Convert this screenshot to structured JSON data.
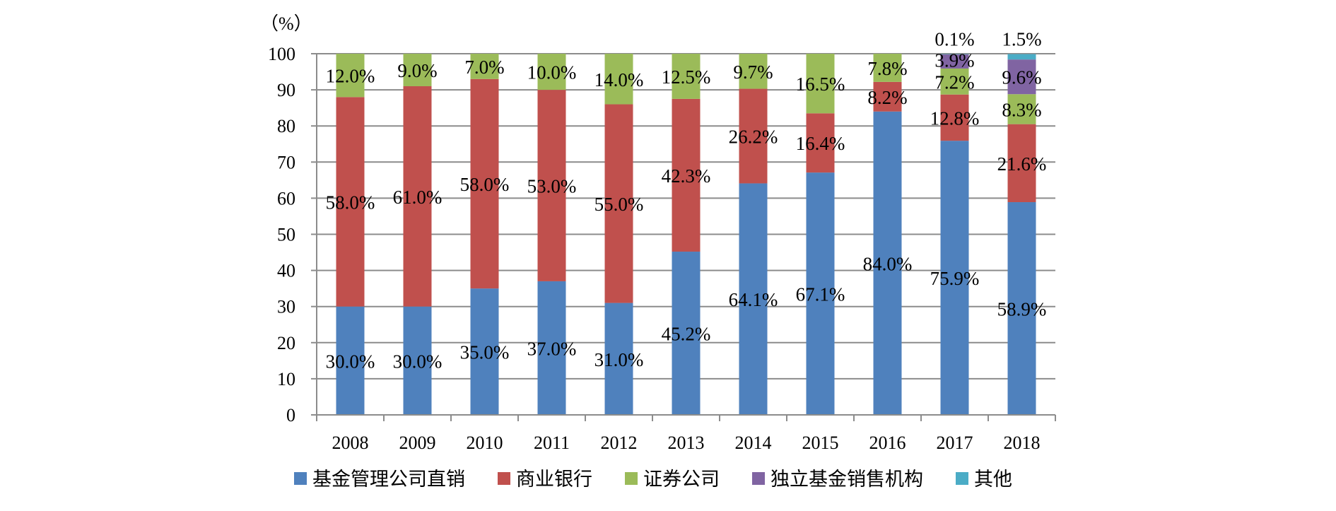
{
  "chart_data": {
    "type": "bar",
    "stacked": true,
    "title": "",
    "xlabel": "",
    "ylabel": "",
    "unit_label": "（%）",
    "ylim": [
      0,
      100
    ],
    "yticks": [
      0,
      10,
      20,
      30,
      40,
      50,
      60,
      70,
      80,
      90,
      100
    ],
    "grid": true,
    "legend_position": "bottom",
    "categories": [
      "2008",
      "2009",
      "2010",
      "2011",
      "2012",
      "2013",
      "2014",
      "2015",
      "2016",
      "2017",
      "2018"
    ],
    "series": [
      {
        "name": "基金管理公司直销",
        "color": "#4f81bd",
        "values": [
          30.0,
          30.0,
          35.0,
          37.0,
          31.0,
          45.2,
          64.1,
          67.1,
          84.0,
          75.9,
          58.9
        ],
        "labels": [
          "30.0%",
          "30.0%",
          "35.0%",
          "37.0%",
          "31.0%",
          "45.2%",
          "64.1%",
          "67.1%",
          "84.0%",
          "75.9%",
          "58.9%"
        ]
      },
      {
        "name": "商业银行",
        "color": "#c0504d",
        "values": [
          58.0,
          61.0,
          58.0,
          53.0,
          55.0,
          42.3,
          26.2,
          16.4,
          8.2,
          12.8,
          21.6
        ],
        "labels": [
          "58.0%",
          "61.0%",
          "58.0%",
          "53.0%",
          "55.0%",
          "42.3%",
          "26.2%",
          "16.4%",
          "8.2%",
          "12.8%",
          "21.6%"
        ]
      },
      {
        "name": "证券公司",
        "color": "#9bbb59",
        "values": [
          12.0,
          9.0,
          7.0,
          10.0,
          14.0,
          12.5,
          9.7,
          16.5,
          7.8,
          7.2,
          8.3
        ],
        "labels": [
          "12.0%",
          "9.0%",
          "7.0%",
          "10.0%",
          "14.0%",
          "12.5%",
          "9.7%",
          "16.5%",
          "7.8%",
          "7.2%",
          "8.3%"
        ]
      },
      {
        "name": "独立基金销售机构",
        "color": "#8064a2",
        "values": [
          0,
          0,
          0,
          0,
          0,
          0,
          0,
          0,
          0,
          3.9,
          9.6
        ],
        "labels": [
          "",
          "",
          "",
          "",
          "",
          "",
          "",
          "",
          "",
          "3.9%",
          "9.6%"
        ]
      },
      {
        "name": "其他",
        "color": "#4bacc6",
        "values": [
          0,
          0,
          0,
          0,
          0,
          0,
          0,
          0,
          0,
          0.1,
          1.5
        ],
        "labels": [
          "",
          "",
          "",
          "",
          "",
          "",
          "",
          "",
          "",
          "0.1%",
          "1.5%"
        ]
      }
    ]
  }
}
